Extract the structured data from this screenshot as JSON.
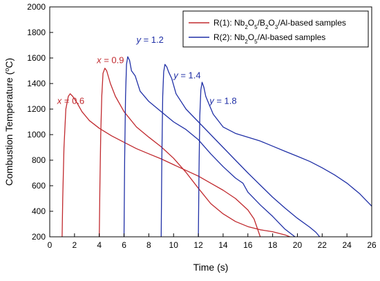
{
  "chart_data": {
    "type": "line",
    "xlabel": "Time (s)",
    "ylabel": "Combustion Temperature (",
    "ylabel_unit": "o",
    "ylabel_tail": "C)",
    "xlim": [
      0,
      26
    ],
    "ylim": [
      200,
      2000
    ],
    "xticks": [
      0,
      2,
      4,
      6,
      8,
      10,
      12,
      14,
      16,
      18,
      20,
      22,
      24,
      26
    ],
    "yticks": [
      200,
      400,
      600,
      800,
      1000,
      1200,
      1400,
      1600,
      1800,
      2000
    ],
    "grid": false,
    "legend_position": "top-right",
    "legend": [
      {
        "pre": "R(1): Nb",
        "s1": "2",
        "m1": "O",
        "s2": "5",
        "m2": "/B",
        "s3": "2",
        "m3": "O",
        "s4": "3",
        "post": "/Al-based samples",
        "color": "#c0282d"
      },
      {
        "pre": "R(2): Nb",
        "s1": "2",
        "m1": "O",
        "s2": "5",
        "post": "/Al-based samples",
        "color": "#1f2fa6"
      }
    ],
    "series": [
      {
        "group": "R(1)",
        "color": "#c0282d",
        "points": [
          [
            1.0,
            200
          ],
          [
            1.05,
            500
          ],
          [
            1.15,
            900
          ],
          [
            1.3,
            1200
          ],
          [
            1.5,
            1300
          ],
          [
            1.65,
            1320
          ],
          [
            1.85,
            1300
          ],
          [
            2.2,
            1250
          ],
          [
            2.6,
            1180
          ],
          [
            3.2,
            1110
          ],
          [
            4.0,
            1050
          ],
          [
            5.0,
            990
          ],
          [
            6.0,
            940
          ],
          [
            7.0,
            890
          ],
          [
            8.0,
            850
          ],
          [
            9.0,
            810
          ],
          [
            10.0,
            765
          ],
          [
            11.0,
            720
          ],
          [
            12.0,
            675
          ],
          [
            13.0,
            620
          ],
          [
            14.0,
            565
          ],
          [
            15.0,
            500
          ],
          [
            16.0,
            410
          ],
          [
            16.5,
            340
          ],
          [
            17.0,
            200
          ]
        ]
      },
      {
        "group": "R(1)",
        "color": "#c0282d",
        "points": [
          [
            4.0,
            200
          ],
          [
            4.05,
            600
          ],
          [
            4.12,
            1000
          ],
          [
            4.2,
            1300
          ],
          [
            4.3,
            1480
          ],
          [
            4.45,
            1520
          ],
          [
            4.6,
            1500
          ],
          [
            4.9,
            1400
          ],
          [
            5.3,
            1300
          ],
          [
            6.0,
            1180
          ],
          [
            7.0,
            1060
          ],
          [
            8.0,
            980
          ],
          [
            9.0,
            905
          ],
          [
            10.0,
            815
          ],
          [
            11.0,
            705
          ],
          [
            12.0,
            580
          ],
          [
            13.0,
            460
          ],
          [
            14.0,
            380
          ],
          [
            15.0,
            320
          ],
          [
            16.0,
            280
          ],
          [
            17.0,
            255
          ],
          [
            18.0,
            240
          ],
          [
            19.0,
            215
          ],
          [
            19.4,
            200
          ]
        ]
      },
      {
        "group": "R(2)",
        "color": "#1f2fa6",
        "points": [
          [
            6.0,
            200
          ],
          [
            6.05,
            800
          ],
          [
            6.12,
            1300
          ],
          [
            6.2,
            1550
          ],
          [
            6.3,
            1610
          ],
          [
            6.45,
            1580
          ],
          [
            6.6,
            1500
          ],
          [
            6.9,
            1460
          ],
          [
            7.3,
            1340
          ],
          [
            8.0,
            1260
          ],
          [
            9.0,
            1180
          ],
          [
            10.0,
            1100
          ],
          [
            11.0,
            1040
          ],
          [
            12.0,
            960
          ],
          [
            13.0,
            850
          ],
          [
            14.0,
            750
          ],
          [
            15.0,
            660
          ],
          [
            15.3,
            640
          ],
          [
            15.6,
            620
          ],
          [
            16.0,
            550
          ],
          [
            17.0,
            450
          ],
          [
            18.0,
            360
          ],
          [
            19.0,
            260
          ],
          [
            19.8,
            200
          ]
        ]
      },
      {
        "group": "R(2)",
        "color": "#1f2fa6",
        "points": [
          [
            9.0,
            200
          ],
          [
            9.05,
            800
          ],
          [
            9.12,
            1300
          ],
          [
            9.2,
            1490
          ],
          [
            9.3,
            1550
          ],
          [
            9.45,
            1530
          ],
          [
            9.6,
            1490
          ],
          [
            9.85,
            1440
          ],
          [
            10.2,
            1320
          ],
          [
            11.0,
            1200
          ],
          [
            12.0,
            1100
          ],
          [
            13.0,
            1000
          ],
          [
            14.0,
            900
          ],
          [
            15.0,
            800
          ],
          [
            16.0,
            700
          ],
          [
            17.0,
            605
          ],
          [
            18.0,
            510
          ],
          [
            19.0,
            425
          ],
          [
            20.0,
            345
          ],
          [
            21.0,
            275
          ],
          [
            21.5,
            235
          ],
          [
            21.8,
            200
          ]
        ]
      },
      {
        "group": "R(2)",
        "color": "#1f2fa6",
        "points": [
          [
            12.0,
            200
          ],
          [
            12.05,
            700
          ],
          [
            12.12,
            1150
          ],
          [
            12.2,
            1350
          ],
          [
            12.3,
            1410
          ],
          [
            12.45,
            1370
          ],
          [
            12.6,
            1300
          ],
          [
            12.9,
            1230
          ],
          [
            13.2,
            1160
          ],
          [
            14.0,
            1060
          ],
          [
            15.0,
            1010
          ],
          [
            16.0,
            980
          ],
          [
            17.0,
            950
          ],
          [
            18.0,
            910
          ],
          [
            19.0,
            870
          ],
          [
            20.0,
            830
          ],
          [
            21.0,
            790
          ],
          [
            22.0,
            740
          ],
          [
            23.0,
            685
          ],
          [
            24.0,
            620
          ],
          [
            25.0,
            540
          ],
          [
            26.0,
            440
          ]
        ]
      }
    ],
    "annotations": [
      {
        "var": "x",
        "text": " = 0.6",
        "x": 0.6,
        "y": 1240,
        "color": "#c0282d"
      },
      {
        "var": "x",
        "text": " = 0.9",
        "x": 3.8,
        "y": 1560,
        "color": "#c0282d"
      },
      {
        "var": "y",
        "text": " = 1.2",
        "x": 7.0,
        "y": 1720,
        "color": "#1f2fa6"
      },
      {
        "var": "y",
        "text": " = 1.4",
        "x": 10.0,
        "y": 1440,
        "color": "#1f2fa6"
      },
      {
        "var": "y",
        "text": " = 1.8",
        "x": 12.9,
        "y": 1240,
        "color": "#1f2fa6"
      }
    ]
  }
}
